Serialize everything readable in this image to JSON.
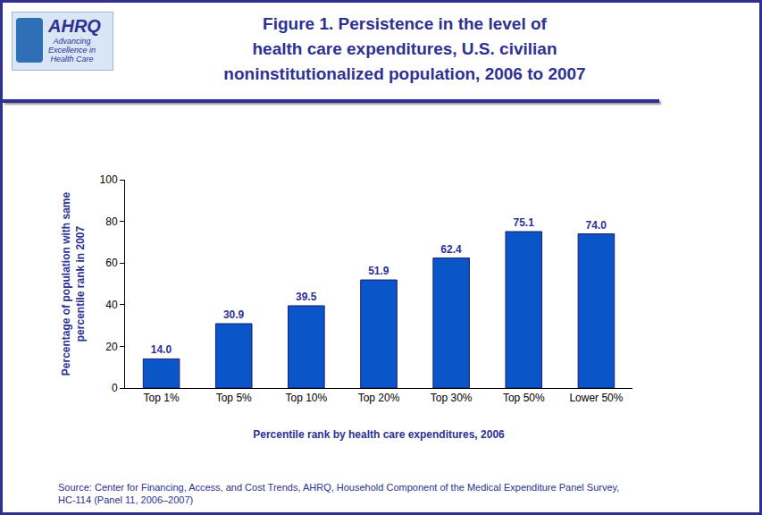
{
  "chart_data": {
    "type": "bar",
    "title": "Figure 1. Persistence in the level of\nhealth care expenditures, U.S. civilian\nnoninstitutionalized population, 2006 to 2007",
    "x_label": "Percentile rank by health care expenditures, 2006",
    "y_label": "Percentage of population with same\npercentile rank in 2007",
    "categories": [
      "Top 1%",
      "Top 5%",
      "Top 10%",
      "Top 20%",
      "Top 30%",
      "Top 50%",
      "Lower 50%"
    ],
    "values": [
      14.0,
      30.9,
      39.5,
      51.9,
      62.4,
      75.1,
      74.0
    ],
    "value_labels": [
      "14.0",
      "30.9",
      "39.5",
      "51.9",
      "62.4",
      "75.1",
      "74.0"
    ],
    "color": "#0a55c8",
    "ylim": [
      0,
      100
    ],
    "yticks": [
      0,
      20,
      40,
      60,
      80,
      100
    ],
    "grid": false,
    "data_labels": true,
    "annotations": [
      "AHRQ",
      "Advancing\nExcellence in\nHealth Care",
      "Source: Center for Financing, Access, and Cost Trends, AHRQ, Household Component of the Medical Expenditure Panel Survey,\nHC-114 (Panel 11, 2006–2007)"
    ]
  }
}
